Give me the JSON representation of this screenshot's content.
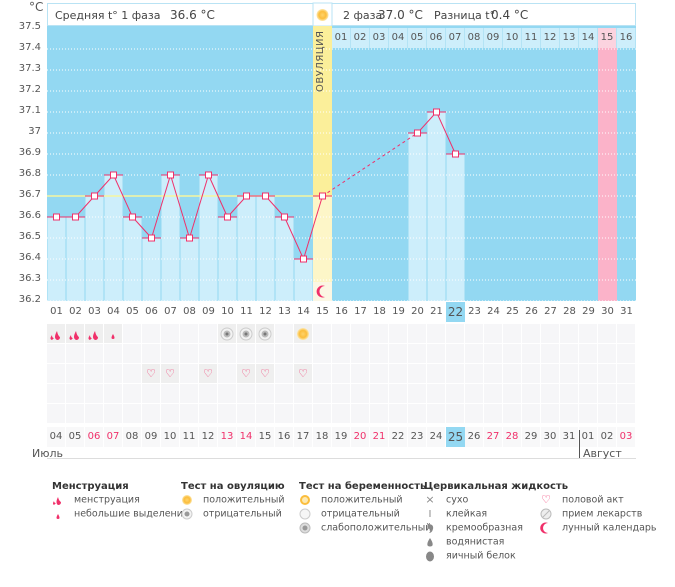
{
  "header": {
    "unit": "°C",
    "phase1_label": "Средняя t° 1 фаза",
    "phase1_value": "36.6 °C",
    "phase2_label": "2 фаза",
    "phase2_value": "37.0 °C",
    "diff_label": "Разница t°",
    "diff_value": "0.4 °C",
    "ovulation_label": "ОВУЛЯЦИЯ",
    "ovulation_icon": "ovulation-sun-icon"
  },
  "chart_data": {
    "type": "line",
    "ylabel": "°C",
    "ylim": [
      36.2,
      37.5
    ],
    "yticks": [
      "37.5",
      "37.4",
      "37.3",
      "37.2",
      "37.1",
      "37",
      "36.9",
      "36.8",
      "36.7",
      "36.6",
      "36.5",
      "36.4",
      "36.3",
      "36.2"
    ],
    "cycle_days": [
      "01",
      "02",
      "03",
      "04",
      "05",
      "06",
      "07",
      "08",
      "09",
      "10",
      "11",
      "12",
      "13",
      "14",
      "15",
      "16",
      "17",
      "18",
      "19",
      "20",
      "21",
      "22",
      "23",
      "24",
      "25",
      "26",
      "27",
      "28",
      "29",
      "30",
      "31"
    ],
    "temperatures": [
      36.6,
      36.6,
      36.7,
      36.8,
      36.6,
      36.5,
      36.8,
      36.5,
      36.8,
      36.6,
      36.7,
      36.7,
      36.6,
      36.4,
      36.7,
      null,
      null,
      null,
      null,
      37.0,
      37.1,
      36.9,
      null,
      null,
      null,
      null,
      null,
      null,
      null,
      null,
      null
    ],
    "coverline": 36.7,
    "ovulation_day": 15,
    "moon_day": 15,
    "current_cycle_day": 22,
    "expected_period_day": 30,
    "phase2_days": [
      "01",
      "02",
      "03",
      "04",
      "05",
      "06",
      "07",
      "08",
      "09",
      "10",
      "11",
      "12",
      "13",
      "14",
      "15",
      "16"
    ],
    "phase2_highlight": "15",
    "grid": true,
    "colors": {
      "background": "#93d8f2",
      "bar": "#cdeefb",
      "line": "#f0306a",
      "ovulation": "#fbef9a",
      "period": "#fbb3c9",
      "coverline": "#f6f5a0"
    }
  },
  "calendar": {
    "dates": [
      "04",
      "05",
      "06",
      "07",
      "08",
      "09",
      "10",
      "11",
      "12",
      "13",
      "14",
      "15",
      "16",
      "17",
      "18",
      "19",
      "20",
      "21",
      "22",
      "23",
      "24",
      "25",
      "26",
      "27",
      "28",
      "29",
      "30",
      "31",
      "01",
      "02",
      "03"
    ],
    "weekends": [
      "06",
      "07",
      "13",
      "14",
      "20",
      "21",
      "27",
      "28",
      "03"
    ],
    "today": "25",
    "months": [
      "Июль",
      "Август"
    ]
  },
  "markers": {
    "menstruation": {
      "1": "heavy",
      "2": "heavy",
      "3": "heavy",
      "4": "light"
    },
    "ovulation_test": {
      "10": "negative",
      "11": "negative",
      "12": "negative",
      "14": "positive"
    },
    "intercourse": [
      6,
      7,
      9,
      11,
      12,
      14
    ]
  },
  "legend": {
    "groups": [
      {
        "title": "Менструация",
        "items": [
          {
            "icon": "menstruation-icon",
            "label": "менструация"
          },
          {
            "icon": "spotting-icon",
            "label": "небольшие выделения"
          }
        ]
      },
      {
        "title": "Тест на овуляцию",
        "items": [
          {
            "icon": "test-positive-icon",
            "label": "положительный"
          },
          {
            "icon": "test-negative-icon",
            "label": "отрицательный"
          }
        ]
      },
      {
        "title": "Тест на беременность",
        "items": [
          {
            "icon": "pregnancy-positive-icon",
            "label": "положительный"
          },
          {
            "icon": "pregnancy-negative-icon",
            "label": "отрицательный"
          },
          {
            "icon": "pregnancy-weak-icon",
            "label": "слабоположительный"
          }
        ]
      },
      {
        "title": "Цервикальная жидкость",
        "items": [
          {
            "icon": "dry-icon",
            "label": "сухо"
          },
          {
            "icon": "sticky-icon",
            "label": "клейкая"
          },
          {
            "icon": "creamy-icon",
            "label": "кремообразная"
          },
          {
            "icon": "watery-icon",
            "label": "водянистая"
          },
          {
            "icon": "egg-white-icon",
            "label": "яичный белок"
          }
        ]
      },
      {
        "title": "",
        "items": [
          {
            "icon": "heart-icon",
            "label": "половой акт"
          },
          {
            "icon": "pill-icon",
            "label": "прием лекарств"
          },
          {
            "icon": "moon-icon",
            "label": "лунный календарь"
          }
        ]
      }
    ]
  }
}
